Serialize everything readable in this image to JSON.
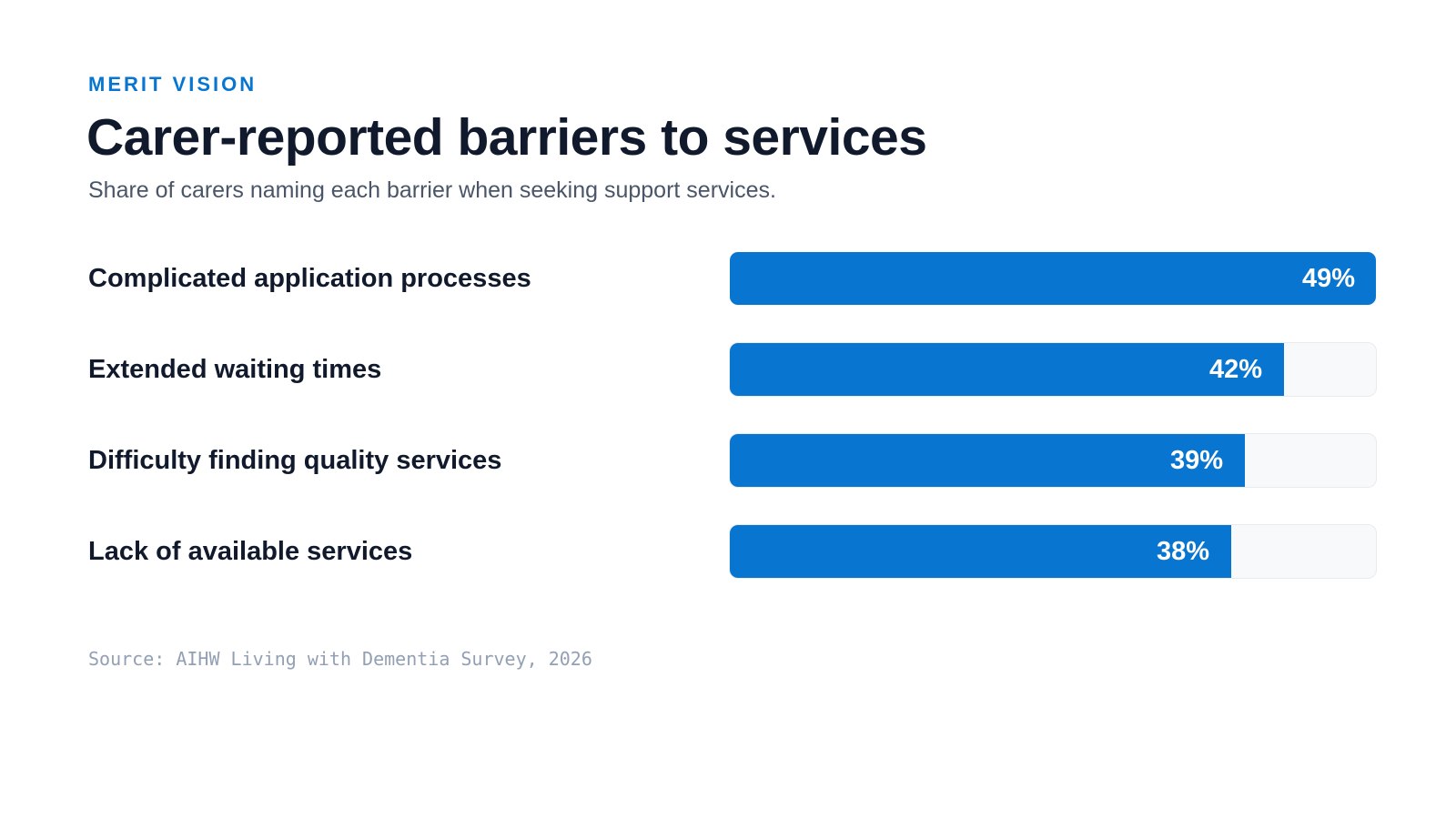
{
  "header": {
    "eyebrow": "MERIT VISION",
    "title": "Carer-reported barriers to services",
    "subtitle": "Share of carers naming each barrier when seeking support services."
  },
  "colors": {
    "bar": "#0875d1",
    "track": "#f8f9fb",
    "label": "#111a2c"
  },
  "chart_data": {
    "type": "bar",
    "orientation": "horizontal",
    "title": "Carer-reported barriers to services",
    "subtitle": "Share of carers naming each barrier when seeking support services.",
    "categories": [
      "Complicated application processes",
      "Extended waiting times",
      "Difficulty finding quality services",
      "Lack of available services"
    ],
    "values": [
      49,
      42,
      39,
      38
    ],
    "value_labels": [
      "49%",
      "42%",
      "39%",
      "38%"
    ],
    "unit": "%",
    "xlim": [
      0,
      49
    ],
    "grid": false,
    "legend": "none"
  },
  "footer": {
    "source": "Source: AIHW Living with Dementia Survey, 2026"
  }
}
